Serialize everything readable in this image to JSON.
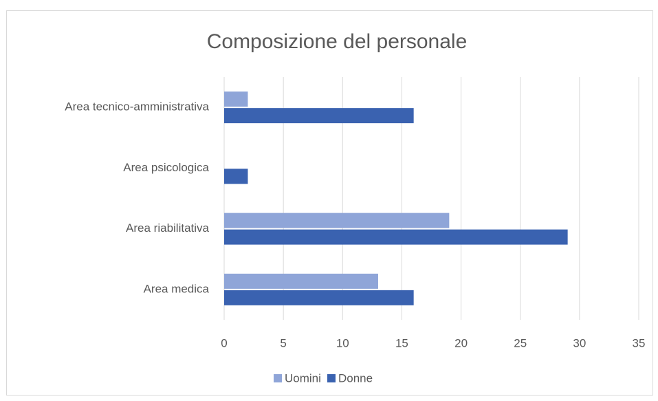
{
  "chart_data": {
    "type": "bar",
    "orientation": "horizontal",
    "title": "Composizione del personale",
    "categories": [
      "Area medica",
      "Area riabilitativa",
      "Area psicologica",
      "Area tecnico-amministrativa"
    ],
    "series": [
      {
        "name": "Uomini",
        "color": "#8fa5d8",
        "values": [
          13,
          19,
          0,
          2
        ]
      },
      {
        "name": "Donne",
        "color": "#3a62b0",
        "values": [
          16,
          29,
          2,
          16
        ]
      }
    ],
    "xlim": [
      0,
      35
    ],
    "xticks": [
      0,
      5,
      10,
      15,
      20,
      25,
      30,
      35
    ],
    "grid": true,
    "legend": "bottom"
  }
}
